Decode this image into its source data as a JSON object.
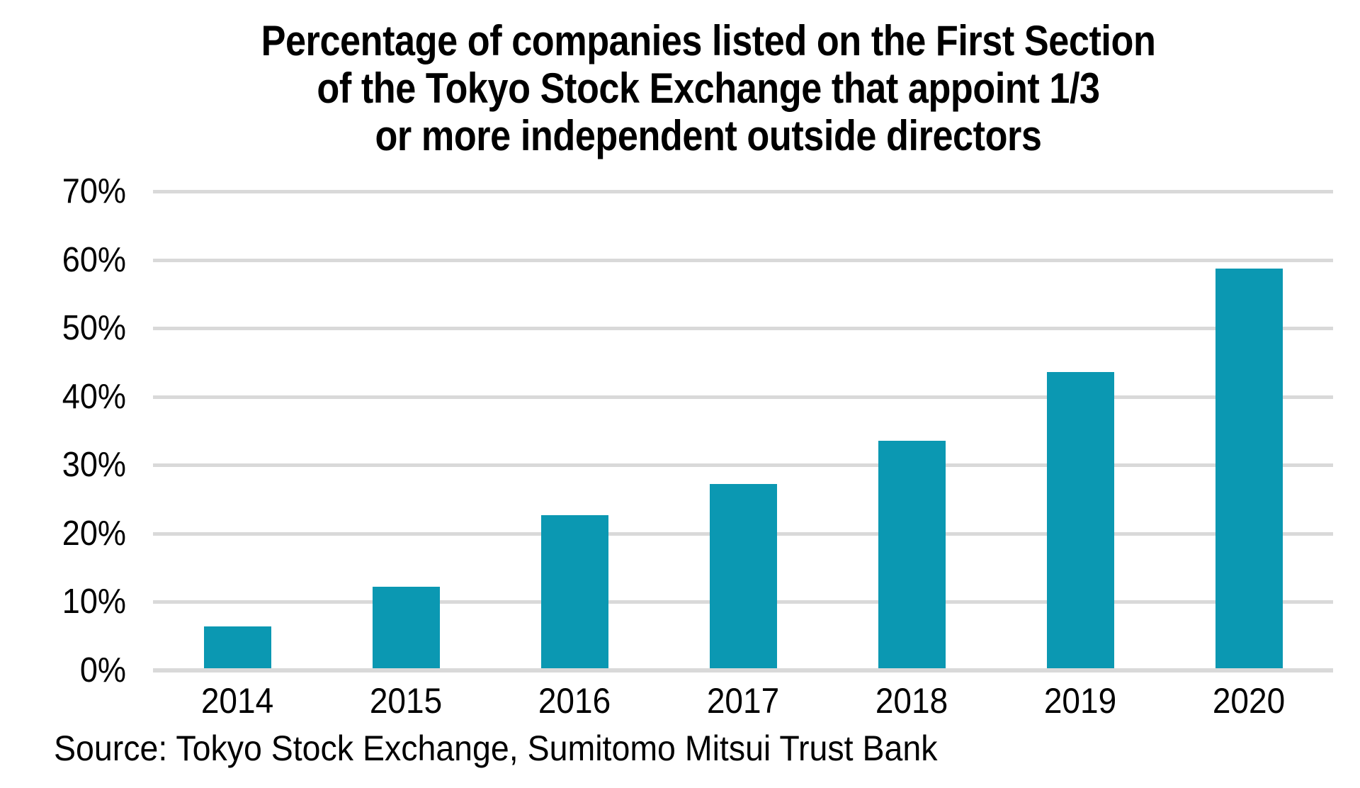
{
  "chart_data": {
    "type": "bar",
    "title": "Percentage of companies listed on the First Section of the Tokyo Stock Exchange that appoint 1/3 or more independent outside directors",
    "title_lines": [
      "Percentage of companies listed on the First Section",
      "of the Tokyo Stock Exchange that appoint 1/3",
      "or more independent outside directors"
    ],
    "categories": [
      "2014",
      "2015",
      "2016",
      "2017",
      "2018",
      "2019",
      "2020"
    ],
    "values": [
      6.4,
      12.2,
      22.7,
      27.2,
      33.6,
      43.6,
      58.7
    ],
    "xlabel": "",
    "ylabel": "",
    "ylim": [
      0,
      70
    ],
    "ytick_step": 10,
    "ytick_suffix": "%",
    "ytick_labels": [
      "0%",
      "10%",
      "20%",
      "30%",
      "40%",
      "50%",
      "60%",
      "70%"
    ],
    "grid": true,
    "legend": false,
    "bar_color": "#0b98b2",
    "gridline_color": "#d9d9d9",
    "axis_line_color": "#d9d9d9",
    "text_color": "#000000"
  },
  "source_note": "Source: Tokyo Stock Exchange, Sumitomo Mitsui Trust Bank"
}
